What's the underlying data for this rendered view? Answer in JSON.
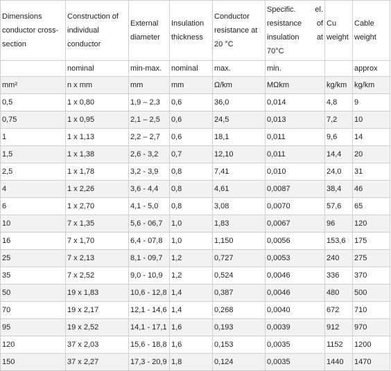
{
  "headers": [
    "Dimensions conductor cross-section",
    "Construction of individual conductor",
    "External diameter",
    "Insulation thickness",
    "Conductor resistance at 20 °C",
    "Specific. el. resistance of insulation at 70°C",
    "Cu weight",
    "Cable weight"
  ],
  "qualifiers": [
    "",
    "nominal",
    "min-max.",
    "nominal",
    "max.",
    "min.",
    "",
    "approx"
  ],
  "units": [
    "mm²",
    "n x mm",
    "mm",
    "mm",
    "Ω/km",
    "MΩkm",
    "kg/km",
    "kg/km"
  ],
  "rows": [
    [
      "0,5",
      "1 x 0,80",
      "1,9 – 2,3",
      "0,6",
      "36,0",
      "0,014",
      "4,8",
      "9"
    ],
    [
      "0,75",
      "1 x 0,95",
      "2,1 – 2,5",
      "0,6",
      "24,5",
      "0,013",
      "7,2",
      "10"
    ],
    [
      "1",
      "1 x 1,13",
      "2,2 – 2,7",
      "0,6",
      "18,1",
      "0,011",
      "9,6",
      "14"
    ],
    [
      "1,5",
      "1 x 1,38",
      "2,6 - 3,2",
      "0,7",
      "12,10",
      "0,011",
      "14,4",
      "20"
    ],
    [
      "2,5",
      "1 x 1,78",
      "3,2 - 3,9",
      "0,8",
      "7,41",
      "0,010",
      "24,0",
      "31"
    ],
    [
      "4",
      "1 x 2,26",
      "3,6 - 4,4",
      "0,8",
      "4,61",
      "0,0087",
      "38,4",
      "46"
    ],
    [
      "6",
      "1 x 2,70",
      "4,1 - 5,0",
      "0,8",
      "3,08",
      "0,0070",
      "57,6",
      "65"
    ],
    [
      "10",
      "7 x 1,35",
      "5,6 - 06,7",
      "1,0",
      "1,83",
      "0,0067",
      "96",
      "120"
    ],
    [
      "16",
      "7 x 1,70",
      "6,4 - 07,8",
      "1,0",
      "1,150",
      "0,0056",
      "153,6",
      "175"
    ],
    [
      "25",
      "7 x 2,13",
      "8,1 - 09,7",
      "1,2",
      "0,727",
      "0,0053",
      "240",
      "275"
    ],
    [
      "35",
      "7 x 2,52",
      "9,0 - 10,9",
      "1,2",
      "0,524",
      "0,0046",
      "336",
      "370"
    ],
    [
      "50",
      "19 x 1,83",
      "10,6 - 12,8",
      "1,4",
      "0,387",
      "0,0046",
      "480",
      "500"
    ],
    [
      "70",
      "19 x 2,17",
      "12,1 - 14,6",
      "1,4",
      "0,268",
      "0,0040",
      "672",
      "710"
    ],
    [
      "95",
      "19 x 2,52",
      "14,1 - 17,1",
      "1,6",
      "0,193",
      "0,0039",
      "912",
      "970"
    ],
    [
      "120",
      "37 x 2,03",
      "15,6 - 18,8",
      "1,6",
      "0,153",
      "0,0035",
      "1152",
      "1200"
    ],
    [
      "150",
      "37 x 2,27",
      "17,3 - 20,9",
      "1,8",
      "0,124",
      "0,0035",
      "1440",
      "1470"
    ]
  ]
}
